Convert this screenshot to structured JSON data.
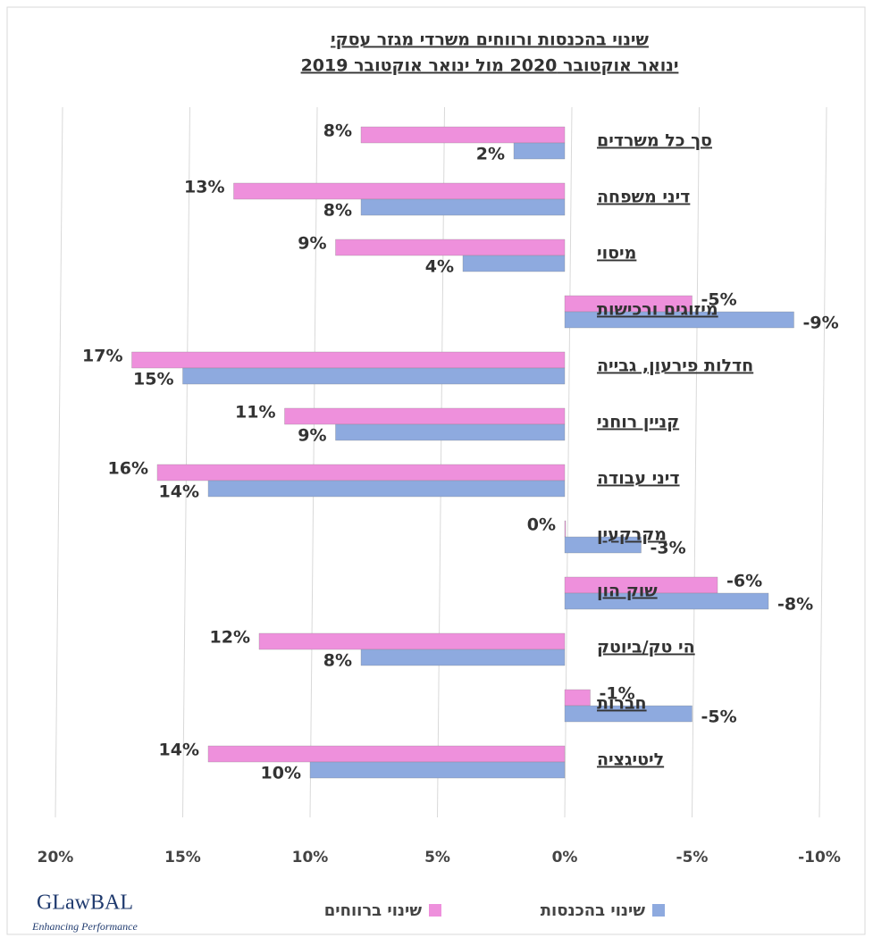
{
  "chart_data": {
    "type": "barh",
    "title": [
      "שינוי בהכנסות ורווחים משרדי מגזר עסקי",
      "ינואר אוקטובר 2020 מול ינואר אוקטובר 2019"
    ],
    "categories": [
      "סך כל משרדים",
      "דיני משפחה",
      "מיסוי",
      "מיזוגים ורכישות",
      "חדלות פירעון, גבייה",
      "קניין רוחני",
      "דיני עבודה",
      "מקרקעין",
      "שוק הון",
      "הי טק/ביוטק",
      "חברות",
      "ליטיגציה"
    ],
    "series": [
      {
        "name": "שינוי ברווחים",
        "color": "#ee90dc",
        "values": [
          8,
          13,
          9,
          -5,
          17,
          11,
          16,
          0,
          -6,
          12,
          -1,
          14
        ],
        "value_labels": [
          "8%",
          "13%",
          "9%",
          "-5%",
          "17%",
          "11%",
          "16%",
          "0%",
          "-6%",
          "12%",
          "-1%",
          "14%"
        ]
      },
      {
        "name": "שינוי בהכנסות",
        "color": "#8eaadf",
        "values": [
          2,
          8,
          4,
          -9,
          15,
          9,
          14,
          -3,
          -8,
          8,
          -5,
          10
        ],
        "value_labels": [
          "2%",
          "8%",
          "4%",
          "-9%",
          "15%",
          "9%",
          "14%",
          "-3%",
          "-8%",
          "8%",
          "-5%",
          "10%"
        ]
      }
    ],
    "xlim": [
      20,
      -10
    ],
    "xticks": [
      {
        "value": 20,
        "label": "20%"
      },
      {
        "value": 15,
        "label": "15%"
      },
      {
        "value": 10,
        "label": "10%"
      },
      {
        "value": 5,
        "label": "5%"
      },
      {
        "value": 0,
        "label": "0%"
      },
      {
        "value": -5,
        "label": "-5%"
      },
      {
        "value": -10,
        "label": "-10%"
      }
    ],
    "grid": true,
    "legend": "bottom"
  },
  "logo": {
    "name": "GLawBAL",
    "tagline": "Enhancing Performance"
  }
}
